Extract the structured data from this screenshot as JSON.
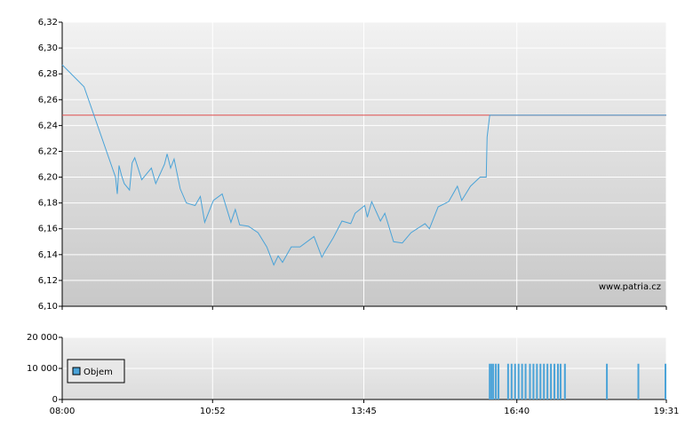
{
  "chart_data": [
    {
      "type": "line",
      "watermark": "www.patria.cz",
      "x": [
        "08:00",
        "08:25",
        "09:01",
        "09:03",
        "09:05",
        "09:08",
        "09:11",
        "09:17",
        "09:20",
        "09:23",
        "09:31",
        "09:42",
        "09:47",
        "09:57",
        "10:00",
        "10:04",
        "10:08",
        "10:15",
        "10:22",
        "10:32",
        "10:38",
        "10:43",
        "10:53",
        "11:03",
        "11:13",
        "11:18",
        "11:23",
        "11:33",
        "11:44",
        "11:54",
        "12:02",
        "12:07",
        "12:12",
        "12:22",
        "12:32",
        "12:48",
        "12:57",
        "13:01",
        "13:10",
        "13:20",
        "13:30",
        "13:35",
        "13:46",
        "13:49",
        "13:54",
        "14:04",
        "14:09",
        "14:19",
        "14:29",
        "14:39",
        "14:55",
        "15:00",
        "15:10",
        "15:22",
        "15:32",
        "15:37",
        "15:47",
        "15:58",
        "16:05",
        "16:06",
        "16:09",
        "19:31"
      ],
      "series": [
        {
          "color": "#4aa3d8",
          "values": [
            6.287,
            6.27,
            6.2,
            6.187,
            6.209,
            6.201,
            6.195,
            6.19,
            6.211,
            6.215,
            6.198,
            6.207,
            6.195,
            6.21,
            6.218,
            6.207,
            6.214,
            6.191,
            6.18,
            6.178,
            6.185,
            6.165,
            6.182,
            6.187,
            6.165,
            6.175,
            6.163,
            6.162,
            6.157,
            6.146,
            6.132,
            6.139,
            6.134,
            6.146,
            6.146,
            6.154,
            6.138,
            6.143,
            6.153,
            6.166,
            6.164,
            6.172,
            6.178,
            6.169,
            6.181,
            6.166,
            6.172,
            6.15,
            6.149,
            6.157,
            6.164,
            6.16,
            6.177,
            6.181,
            6.193,
            6.182,
            6.193,
            6.2,
            6.2,
            6.231,
            6.248,
            6.248
          ]
        }
      ],
      "reference_line": {
        "value": 6.248,
        "color": "#e05050"
      },
      "xlim": [
        "08:00",
        "19:31"
      ],
      "xticks": [
        "08:00",
        "10:52",
        "13:45",
        "16:40",
        "19:31"
      ],
      "ylim": [
        6.1,
        6.32
      ],
      "yticks": [
        {
          "value": 6.1,
          "label": "6,10"
        },
        {
          "value": 6.12,
          "label": "6,12"
        },
        {
          "value": 6.14,
          "label": "6,14"
        },
        {
          "value": 6.16,
          "label": "6,16"
        },
        {
          "value": 6.18,
          "label": "6,18"
        },
        {
          "value": 6.2,
          "label": "6,20"
        },
        {
          "value": 6.22,
          "label": "6,22"
        },
        {
          "value": 6.24,
          "label": "6,24"
        },
        {
          "value": 6.26,
          "label": "6,26"
        },
        {
          "value": 6.28,
          "label": "6,28"
        },
        {
          "value": 6.3,
          "label": "6,30"
        },
        {
          "value": 6.32,
          "label": "6,32"
        }
      ],
      "grid": true
    },
    {
      "type": "bar",
      "x": [
        "16:09",
        "16:11",
        "16:13",
        "16:16",
        "16:19",
        "16:30",
        "16:34",
        "16:38",
        "16:42",
        "16:46",
        "16:50",
        "16:55",
        "16:59",
        "17:03",
        "17:07",
        "17:11",
        "17:15",
        "17:19",
        "17:23",
        "17:27",
        "17:30",
        "17:35",
        "18:23",
        "18:59",
        "19:30"
      ],
      "series": [
        {
          "name": "Objem",
          "color": "#4aa3d8",
          "values": [
            11500,
            11500,
            11500,
            11500,
            11500,
            11500,
            11500,
            11500,
            11500,
            11500,
            11500,
            11500,
            11500,
            11500,
            11500,
            11500,
            11500,
            11500,
            11500,
            11500,
            11500,
            11500,
            11500,
            11500,
            11500
          ]
        }
      ],
      "xlim": [
        "08:00",
        "19:31"
      ],
      "xticks": [
        "08:00",
        "10:52",
        "13:45",
        "16:40",
        "19:31"
      ],
      "ylim": [
        0,
        20000
      ],
      "yticks": [
        0,
        {
          "value": 10000,
          "label": "10 000"
        },
        {
          "value": 20000,
          "label": "20 000"
        }
      ],
      "grid": true,
      "legend": "left"
    }
  ]
}
